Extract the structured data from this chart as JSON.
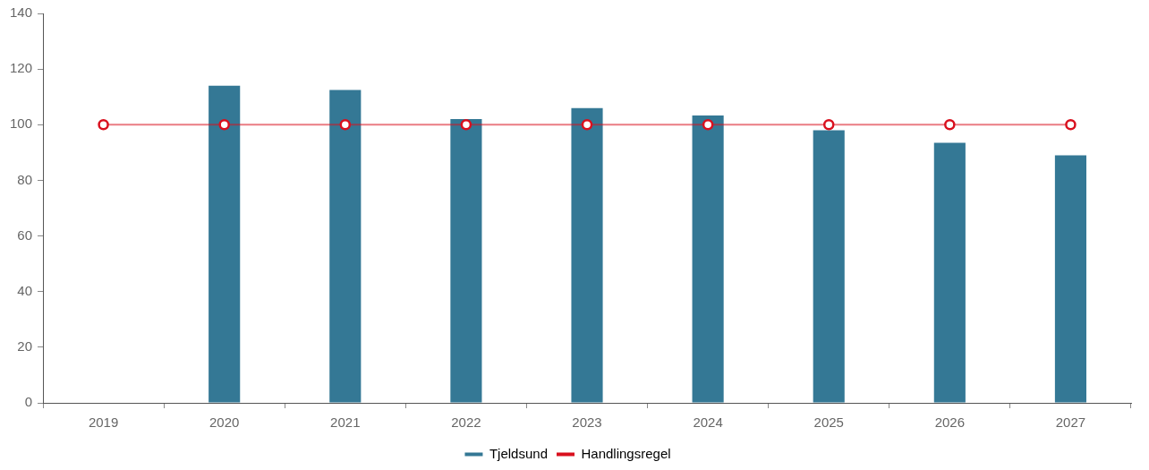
{
  "chart_data": {
    "type": "bar",
    "categories": [
      "2019",
      "2020",
      "2021",
      "2022",
      "2023",
      "2024",
      "2025",
      "2026",
      "2027"
    ],
    "series": [
      {
        "name": "Tjeldsund",
        "color": "#347895",
        "values": [
          null,
          114,
          112.5,
          102,
          106,
          103.3,
          98,
          93.5,
          89
        ]
      },
      {
        "name": "Handlingsregel",
        "type": "line",
        "color": "#d9101e",
        "values": [
          100,
          100,
          100,
          100,
          100,
          100,
          100,
          100,
          100
        ]
      }
    ],
    "ylim": [
      0,
      140
    ],
    "yticks": [
      0,
      20,
      40,
      60,
      80,
      100,
      120,
      140
    ],
    "grid": false,
    "legend": "bottom",
    "marker": "circle"
  }
}
